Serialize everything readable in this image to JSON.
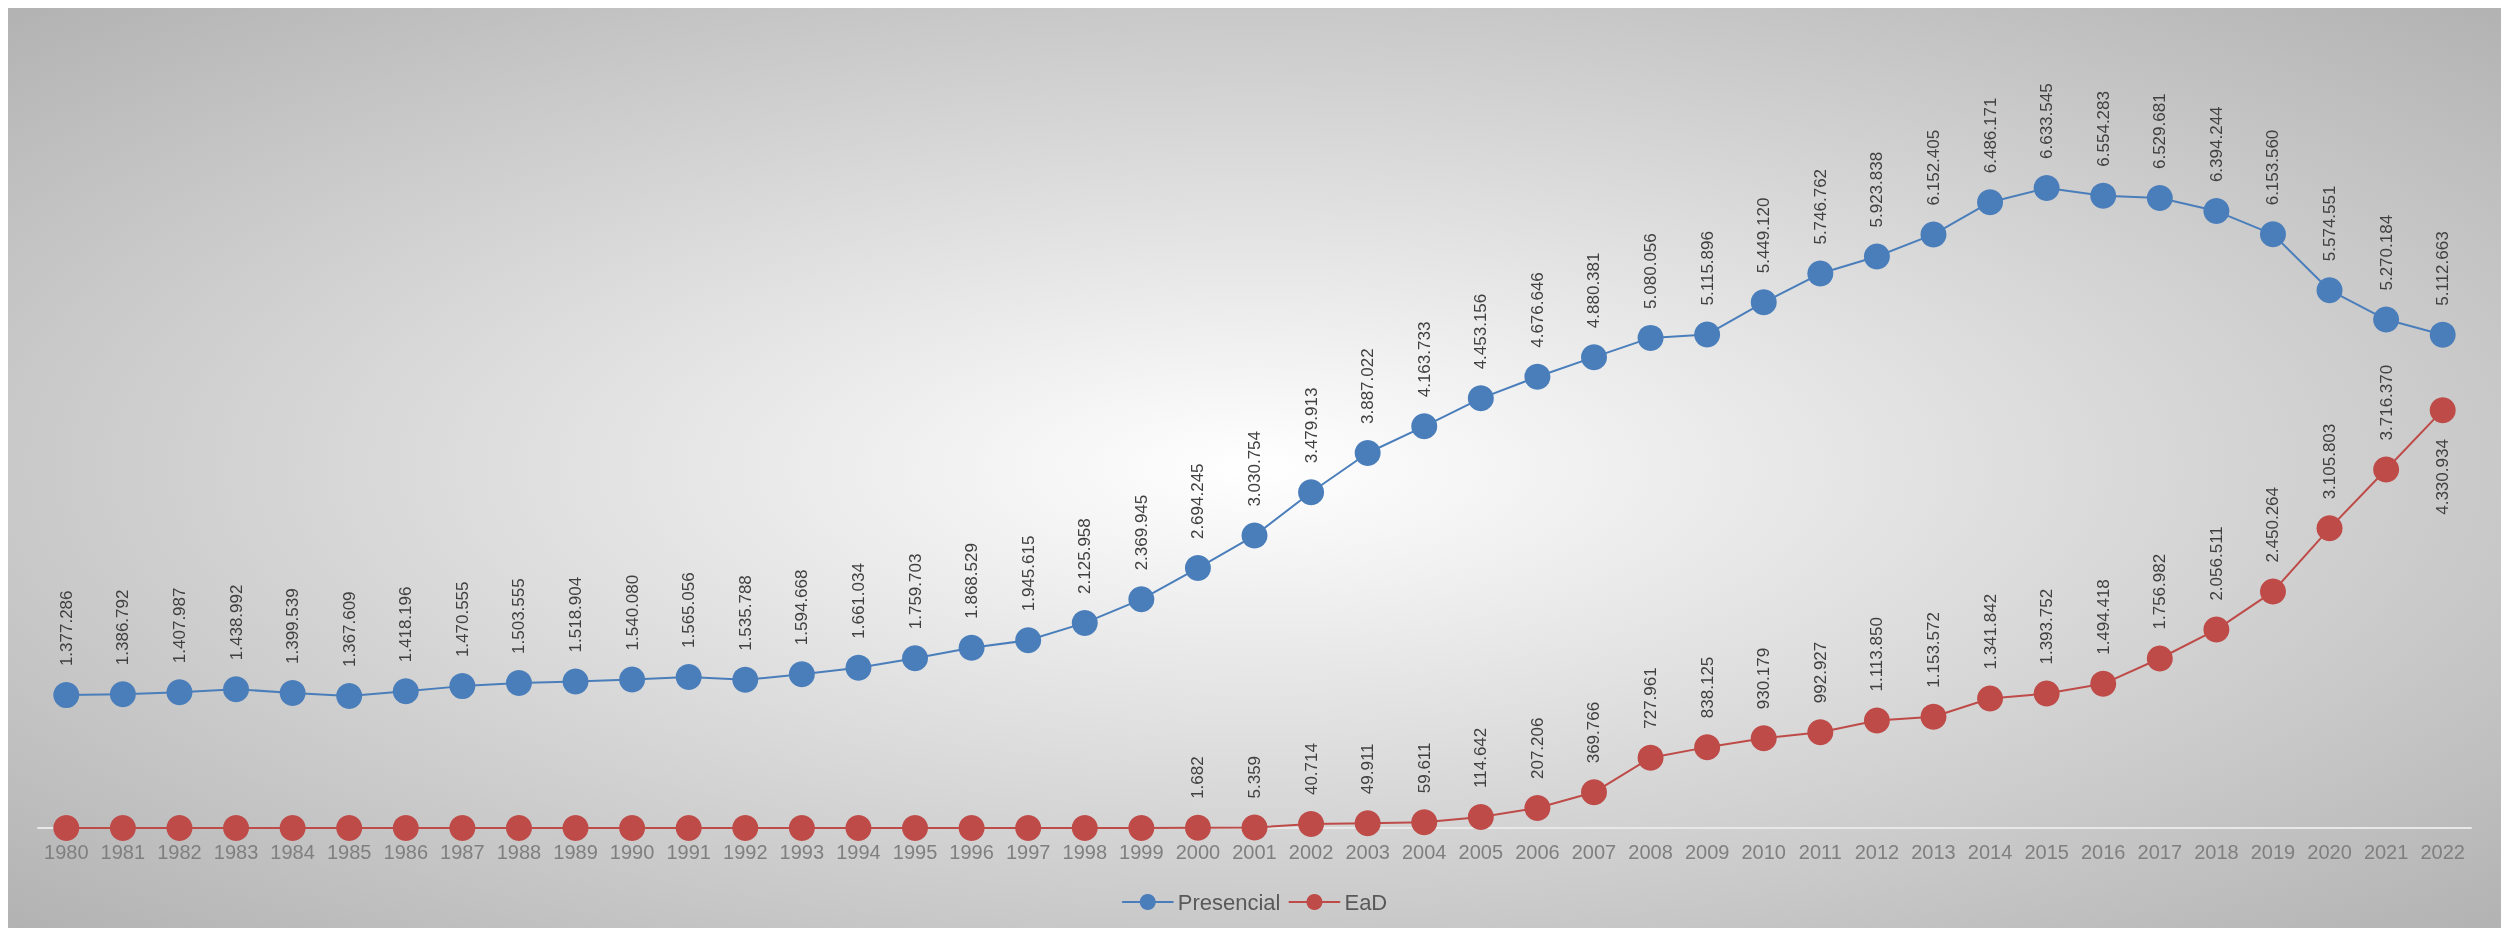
{
  "chart_data": {
    "type": "line",
    "categories": [
      "1980",
      "1981",
      "1982",
      "1983",
      "1984",
      "1985",
      "1986",
      "1987",
      "1988",
      "1989",
      "1990",
      "1991",
      "1992",
      "1993",
      "1994",
      "1995",
      "1996",
      "1997",
      "1998",
      "1999",
      "2000",
      "2001",
      "2002",
      "2003",
      "2004",
      "2005",
      "2006",
      "2007",
      "2008",
      "2009",
      "2010",
      "2011",
      "2012",
      "2013",
      "2014",
      "2015",
      "2016",
      "2017",
      "2018",
      "2019",
      "2020",
      "2021",
      "2022"
    ],
    "series": [
      {
        "name": "Presencial",
        "color": "#4a7ebb",
        "values": [
          1377286,
          1386792,
          1407987,
          1438992,
          1399539,
          1367609,
          1418196,
          1470555,
          1503555,
          1518904,
          1540080,
          1565056,
          1535788,
          1594668,
          1661034,
          1759703,
          1868529,
          1945615,
          2125958,
          2369945,
          2694245,
          3030754,
          3479913,
          3887022,
          4163733,
          4453156,
          4676646,
          4880381,
          5080056,
          5115896,
          5449120,
          5746762,
          5923838,
          6152405,
          6486171,
          6633545,
          6554283,
          6529681,
          6394244,
          6153560,
          5574551,
          5270184,
          5112663
        ],
        "value_labels": [
          "1.377.286",
          "1.386.792",
          "1.407.987",
          "1.438.992",
          "1.399.539",
          "1.367.609",
          "1.418.196",
          "1.470.555",
          "1.503.555",
          "1.518.904",
          "1.540.080",
          "1.565.056",
          "1.535.788",
          "1.594.668",
          "1.661.034",
          "1.759.703",
          "1.868.529",
          "1.945.615",
          "2.125.958",
          "2.369.945",
          "2.694.245",
          "3.030.754",
          "3.479.913",
          "3.887.022",
          "4.163.733",
          "4.453.156",
          "4.676.646",
          "4.880.381",
          "5.080.056",
          "5.115.896",
          "5.449.120",
          "5.746.762",
          "5.923.838",
          "6.152.405",
          "6.486.171",
          "6.633.545",
          "6.554.283",
          "6.529.681",
          "6.394.244",
          "6.153.560",
          "5.574.551",
          "5.270.184",
          "5.112.663"
        ]
      },
      {
        "name": "EaD",
        "color": "#be4b48",
        "values": [
          0,
          0,
          0,
          0,
          0,
          0,
          0,
          0,
          0,
          0,
          0,
          0,
          0,
          0,
          0,
          0,
          0,
          0,
          0,
          0,
          1682,
          5359,
          40714,
          49911,
          59611,
          114642,
          207206,
          369766,
          727961,
          838125,
          930179,
          992927,
          1113850,
          1153572,
          1341842,
          1393752,
          1494418,
          1756982,
          2056511,
          2450264,
          3105803,
          3716370,
          4330934
        ],
        "value_labels": [
          null,
          null,
          null,
          null,
          null,
          null,
          null,
          null,
          null,
          null,
          null,
          null,
          null,
          null,
          null,
          null,
          null,
          null,
          null,
          null,
          "1.682",
          "5.359",
          "40.714",
          "49.911",
          "59.611",
          "114.642",
          "207.206",
          "369.766",
          "727.961",
          "838.125",
          "930.179",
          "992.927",
          "1.113.850",
          "1.153.572",
          "1.341.842",
          "1.393.752",
          "1.494.418",
          "1.756.982",
          "2.056.511",
          "2.450.264",
          "3.105.803",
          "3.716.370",
          "4.330.934"
        ]
      }
    ],
    "marker": "circle",
    "line_style": "solid",
    "grid": false,
    "legend": "bottom",
    "tick_labels": "x"
  }
}
